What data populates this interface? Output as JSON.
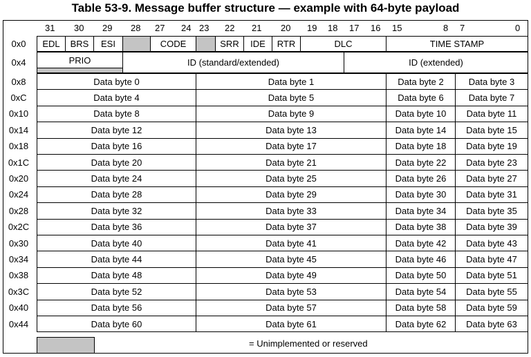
{
  "table": {
    "title": "Table 53-9.   Message buffer structure — example with 64-byte payload",
    "bit_labels": [
      "31",
      "30",
      "29",
      "28",
      "27",
      "24",
      "23",
      "22",
      "21",
      "20",
      "19",
      "18",
      "17",
      "16",
      "15",
      "8",
      "7",
      "0"
    ],
    "word0": {
      "offset": "0x0",
      "fields": [
        "EDL",
        "BRS",
        "ESI",
        "",
        "CODE",
        "",
        "SRR",
        "IDE",
        "RTR",
        "DLC",
        "TIME STAMP"
      ]
    },
    "word1": {
      "offset": "0x4",
      "fields": [
        "PRIO",
        "ID (standard/extended)",
        "ID (extended)"
      ]
    },
    "data_rows": [
      {
        "offset": "0x8",
        "bytes": [
          "Data byte 0",
          "Data byte 1",
          "Data byte 2",
          "Data byte 3"
        ]
      },
      {
        "offset": "0xC",
        "bytes": [
          "Data byte 4",
          "Data byte 5",
          "Data byte 6",
          "Data byte 7"
        ]
      },
      {
        "offset": "0x10",
        "bytes": [
          "Data byte 8",
          "Data byte 9",
          "Data byte 10",
          "Data byte 11"
        ]
      },
      {
        "offset": "0x14",
        "bytes": [
          "Data byte 12",
          "Data byte 13",
          "Data byte 14",
          "Data byte 15"
        ]
      },
      {
        "offset": "0x18",
        "bytes": [
          "Data byte 16",
          "Data byte 17",
          "Data byte 18",
          "Data byte 19"
        ]
      },
      {
        "offset": "0x1C",
        "bytes": [
          "Data byte 20",
          "Data byte 21",
          "Data byte 22",
          "Data byte 23"
        ]
      },
      {
        "offset": "0x20",
        "bytes": [
          "Data byte 24",
          "Data byte 25",
          "Data byte 26",
          "Data byte 27"
        ]
      },
      {
        "offset": "0x24",
        "bytes": [
          "Data byte 28",
          "Data byte 29",
          "Data byte 30",
          "Data byte 31"
        ]
      },
      {
        "offset": "0x28",
        "bytes": [
          "Data byte 32",
          "Data byte 33",
          "Data byte 34",
          "Data byte 35"
        ]
      },
      {
        "offset": "0x2C",
        "bytes": [
          "Data byte 36",
          "Data byte 37",
          "Data byte 38",
          "Data byte 39"
        ]
      },
      {
        "offset": "0x30",
        "bytes": [
          "Data byte 40",
          "Data byte 41",
          "Data byte 42",
          "Data byte 43"
        ]
      },
      {
        "offset": "0x34",
        "bytes": [
          "Data byte 44",
          "Data byte 45",
          "Data byte 46",
          "Data byte 47"
        ]
      },
      {
        "offset": "0x38",
        "bytes": [
          "Data byte 48",
          "Data byte 49",
          "Data byte 50",
          "Data byte 51"
        ]
      },
      {
        "offset": "0x3C",
        "bytes": [
          "Data byte 52",
          "Data byte 53",
          "Data byte 54",
          "Data byte 55"
        ]
      },
      {
        "offset": "0x40",
        "bytes": [
          "Data byte 56",
          "Data byte 57",
          "Data byte 58",
          "Data byte 59"
        ]
      },
      {
        "offset": "0x44",
        "bytes": [
          "Data byte 60",
          "Data byte 61",
          "Data byte 62",
          "Data byte 63"
        ]
      }
    ],
    "legend": {
      "text": "= Unimplemented or reserved",
      "swatch_color": "#c4c4c4"
    }
  }
}
